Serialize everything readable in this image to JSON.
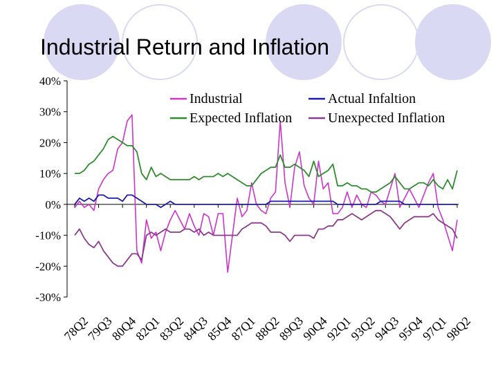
{
  "slide": {
    "title": "Industrial Return and Inflation"
  },
  "colors": {
    "Industrial": "#cc33cc",
    "Actual Infaltion": "#1a1aaa",
    "Expected Inflation": "#2e8b2e",
    "Unexpected Inflation": "#8b3a8b",
    "decoration": "#d9d9f3"
  },
  "chart_data": {
    "type": "line",
    "title": "",
    "xlabel": "",
    "ylabel": "",
    "ylim": [
      -30,
      40
    ],
    "yticks": [
      "40%",
      "30%",
      "20%",
      "10%",
      "0%",
      "-10%",
      "-20%",
      "-30%"
    ],
    "ytick_values": [
      40,
      30,
      20,
      10,
      0,
      -10,
      -20,
      -30
    ],
    "xtick_labels": [
      "78Q2",
      "79Q3",
      "80Q4",
      "82Q1",
      "83Q2",
      "84Q3",
      "85Q4",
      "87Q1",
      "88Q2",
      "89Q3",
      "90Q4",
      "92Q1",
      "93Q2",
      "94Q3",
      "95Q4",
      "97Q1",
      "98Q2"
    ],
    "xtick_index": [
      0,
      5,
      10,
      15,
      20,
      25,
      30,
      35,
      40,
      45,
      50,
      55,
      60,
      65,
      70,
      75,
      80
    ],
    "legend_position": "top",
    "grid": false,
    "series": [
      {
        "name": "Industrial",
        "values": [
          -1,
          1,
          -1,
          0,
          -2,
          5,
          8,
          10,
          11,
          18,
          20,
          27,
          29,
          -15,
          -19,
          -5,
          -11,
          -9,
          -15,
          -9,
          -5,
          -2,
          -5,
          -8,
          -3,
          -7,
          -10,
          -3,
          -4,
          -10,
          -3,
          -3,
          -22,
          -10,
          2,
          -4,
          -2,
          7,
          0,
          -2,
          -3,
          2,
          4,
          27,
          7,
          -1,
          12,
          17,
          6,
          2,
          0,
          14,
          5,
          7,
          -3,
          -3,
          -1,
          4,
          -1,
          3,
          0,
          -1,
          4,
          3,
          1,
          0,
          5,
          10,
          -1,
          2,
          5,
          2,
          -1,
          3,
          7,
          10,
          -1,
          -5,
          -10,
          -15,
          -5
        ]
      },
      {
        "name": "Actual Infaltion",
        "values": [
          0,
          2,
          1,
          2,
          1,
          3,
          3,
          2,
          2,
          2,
          1,
          3,
          3,
          2,
          1,
          0,
          0,
          0,
          -1,
          0,
          1,
          0,
          0,
          0,
          0,
          0,
          0,
          0,
          0,
          0,
          0,
          0,
          0,
          0,
          0,
          0,
          0,
          0,
          0,
          0,
          0,
          1,
          1,
          1,
          1,
          1,
          1,
          1,
          1,
          1,
          1,
          1,
          1,
          1,
          1,
          0,
          0,
          0,
          0,
          0,
          0,
          0,
          0,
          0,
          1,
          1,
          1,
          1,
          1,
          0,
          0,
          0,
          0,
          0,
          0,
          0,
          0,
          0,
          0,
          0,
          0
        ]
      },
      {
        "name": "Expected Inflation",
        "values": [
          10,
          10,
          11,
          13,
          14,
          16,
          18,
          21,
          22,
          21,
          20,
          19,
          19,
          17,
          10,
          8,
          12,
          9,
          10,
          9,
          8,
          8,
          8,
          8,
          8,
          9,
          8,
          9,
          9,
          9,
          10,
          9,
          10,
          9,
          8,
          7,
          6,
          6,
          8,
          10,
          11,
          12,
          12,
          16,
          12,
          12,
          13,
          12,
          11,
          9,
          14,
          9,
          10,
          11,
          13,
          6,
          6,
          7,
          6,
          6,
          5,
          5,
          4,
          4,
          5,
          6,
          7,
          9,
          7,
          5,
          5,
          6,
          7,
          7,
          6,
          8,
          6,
          5,
          8,
          5,
          11
        ]
      },
      {
        "name": "Unexpected Inflation",
        "values": [
          -10,
          -8,
          -11,
          -13,
          -14,
          -12,
          -15,
          -17,
          -19,
          -20,
          -20,
          -18,
          -16,
          -16,
          -18,
          -10,
          -9,
          -10,
          -9,
          -8,
          -9,
          -9,
          -9,
          -8,
          -8,
          -9,
          -8,
          -10,
          -9,
          -10,
          -10,
          -10,
          -10,
          -10,
          -10,
          -8,
          -7,
          -6,
          -6,
          -6,
          -7,
          -9,
          -9,
          -9,
          -10,
          -12,
          -10,
          -10,
          -10,
          -10,
          -11,
          -8,
          -8,
          -7,
          -7,
          -5,
          -5,
          -4,
          -3,
          -4,
          -5,
          -4,
          -3,
          -2,
          -2,
          -3,
          -4,
          -6,
          -8,
          -6,
          -5,
          -4,
          -4,
          -4,
          -4,
          -3,
          -5,
          -6,
          -7,
          -8,
          -11
        ]
      }
    ],
    "legend": [
      {
        "label": "Industrial",
        "series": "Industrial"
      },
      {
        "label": "Actual Infaltion",
        "series": "Actual Infaltion"
      },
      {
        "label": "Expected Inflation",
        "series": "Expected Inflation"
      },
      {
        "label": "Unexpected Inflation",
        "series": "Unexpected Inflation"
      }
    ]
  }
}
